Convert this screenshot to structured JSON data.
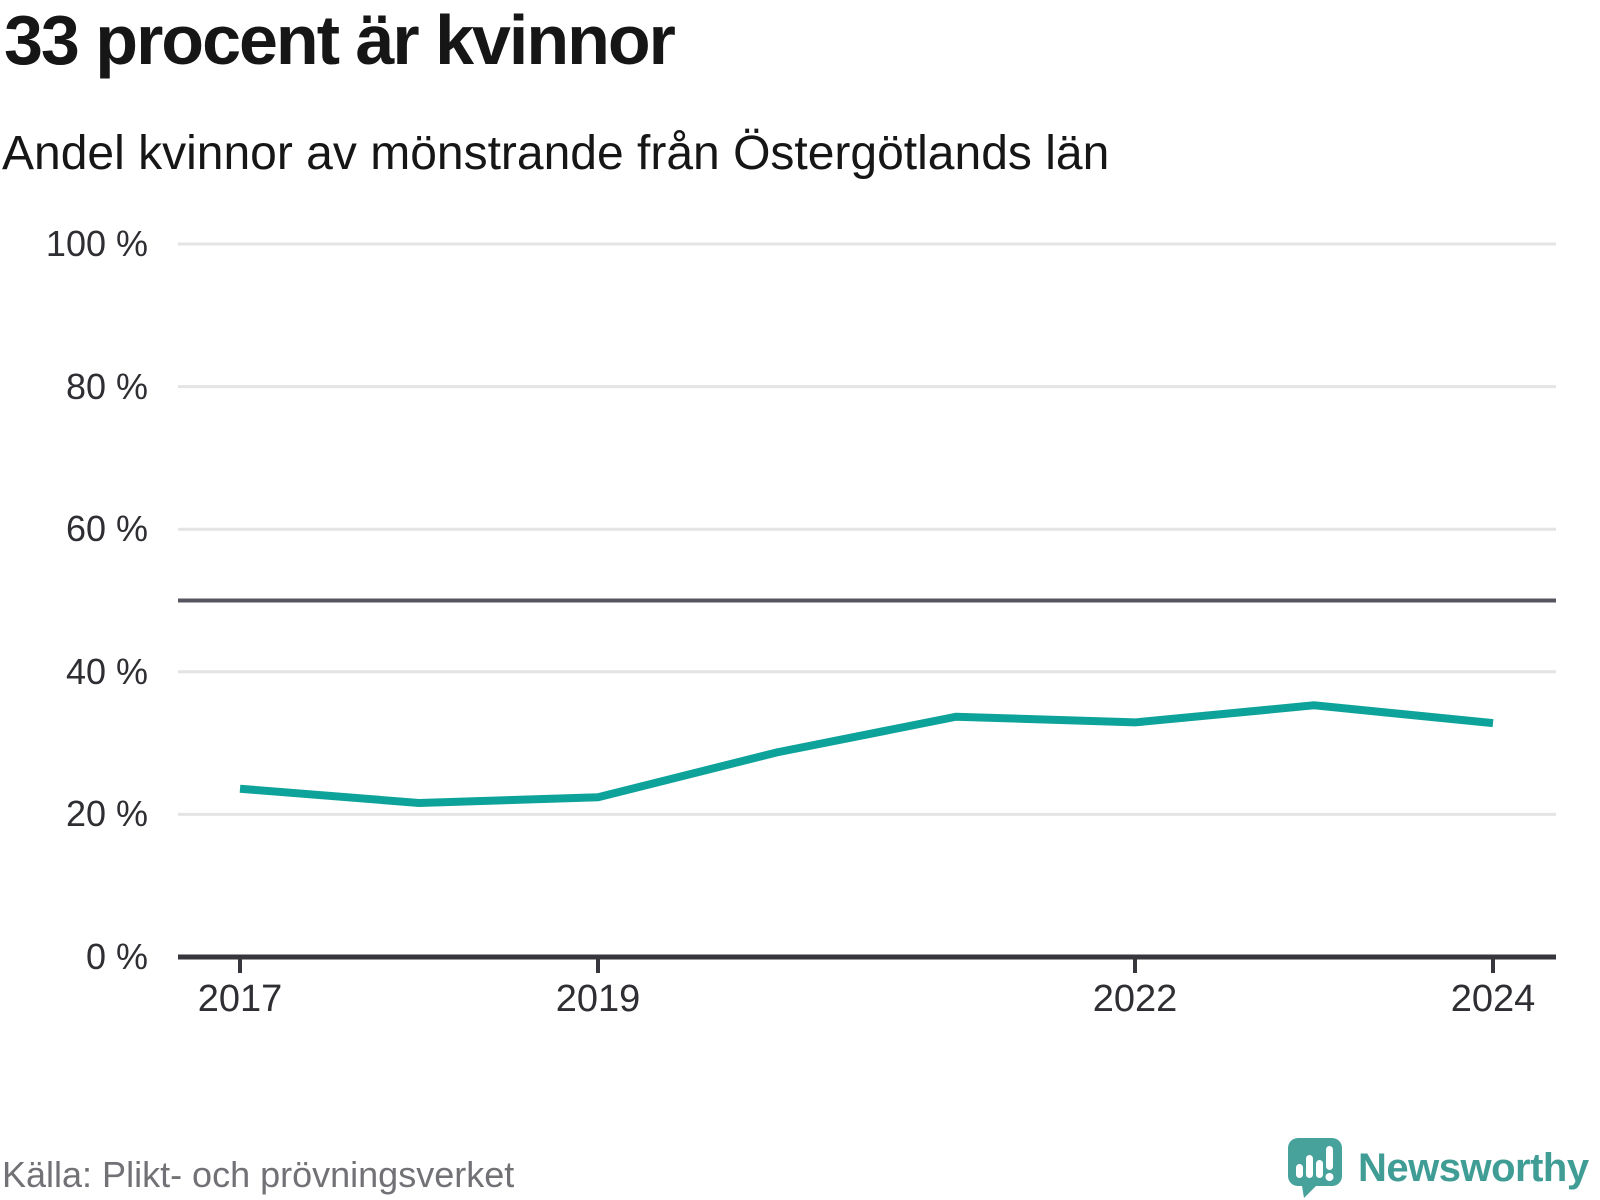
{
  "title": "33 procent är kvinnor",
  "subtitle": "Andel kvinnor av mönstrande från Östergötlands län",
  "source": "Källa: Plikt- och prövningsverket",
  "logo": {
    "text": "Newsworthy"
  },
  "colors": {
    "line": "#0da39a",
    "grid": "#e4e4e6",
    "axis": "#36363c",
    "reference": "#55555f",
    "tick_text": "#2e2e33",
    "title_text": "#161616",
    "source_text": "#717176",
    "logo_teal": "#3f9d95",
    "logo_bubble": "#48a29c"
  },
  "chart_data": {
    "type": "line",
    "title": "33 procent är kvinnor",
    "subtitle": "Andel kvinnor av mönstrande från Östergötlands län",
    "x": [
      2017,
      2018,
      2019,
      2020,
      2021,
      2022,
      2023,
      2024
    ],
    "values": [
      23.6,
      21.6,
      22.4,
      28.7,
      33.7,
      32.9,
      35.3,
      32.8
    ],
    "series_name": "Andel kvinnor av mönstrande",
    "unit": "%",
    "xlabel": "",
    "ylabel": "",
    "ylim": [
      0,
      100
    ],
    "yticks": [
      {
        "v": 0,
        "label": "0 %"
      },
      {
        "v": 20,
        "label": "20 %"
      },
      {
        "v": 40,
        "label": "40 %"
      },
      {
        "v": 60,
        "label": "60 %"
      },
      {
        "v": 80,
        "label": "80 %"
      },
      {
        "v": 100,
        "label": "100 %"
      }
    ],
    "xticks": [
      {
        "v": 2017,
        "label": "2017"
      },
      {
        "v": 2019,
        "label": "2019"
      },
      {
        "v": 2022,
        "label": "2022"
      },
      {
        "v": 2024,
        "label": "2024"
      }
    ],
    "reference_line": {
      "value": 50
    },
    "grid": "horizontal",
    "legend": "none",
    "source": "Källa: Plikt- och prövningsverket"
  }
}
